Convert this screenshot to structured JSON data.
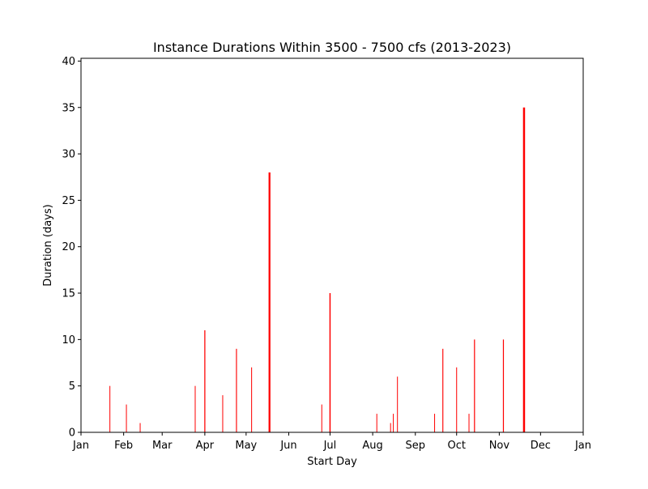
{
  "chart_data": {
    "type": "bar",
    "title": "Instance Durations Within 3500 - 7500 cfs (2013-2023)",
    "xlabel": "Start Day",
    "ylabel": "Duration (days)",
    "xlim": [
      "Jan 1",
      "Jan 1 (next year)"
    ],
    "ylim": [
      0,
      40.3
    ],
    "x_ticks": [
      "Jan",
      "Feb",
      "Mar",
      "Apr",
      "May",
      "Jun",
      "Jul",
      "Aug",
      "Sep",
      "Oct",
      "Nov",
      "Dec",
      "Jan"
    ],
    "y_ticks": [
      0,
      5,
      10,
      15,
      20,
      25,
      30,
      35,
      40
    ],
    "grid": false,
    "bar_color": "#ff0000",
    "series": [
      {
        "values": [
          {
            "start": "Jan 22",
            "duration": 5
          },
          {
            "start": "Feb 3",
            "duration": 3
          },
          {
            "start": "Feb 13",
            "duration": 1
          },
          {
            "start": "Mar 25",
            "duration": 5
          },
          {
            "start": "Apr 1",
            "duration": 11
          },
          {
            "start": "Apr 14",
            "duration": 4
          },
          {
            "start": "Apr 24",
            "duration": 9
          },
          {
            "start": "May 5",
            "duration": 7
          },
          {
            "start": "May 18",
            "duration": 28
          },
          {
            "start": "Jun 25",
            "duration": 3
          },
          {
            "start": "Jul 1",
            "duration": 15
          },
          {
            "start": "Aug 4",
            "duration": 2
          },
          {
            "start": "Aug 14",
            "duration": 1
          },
          {
            "start": "Aug 16",
            "duration": 2
          },
          {
            "start": "Aug 19",
            "duration": 6
          },
          {
            "start": "Sep 15",
            "duration": 2
          },
          {
            "start": "Sep 21",
            "duration": 9
          },
          {
            "start": "Oct 1",
            "duration": 7
          },
          {
            "start": "Oct 10",
            "duration": 2
          },
          {
            "start": "Oct 14",
            "duration": 10
          },
          {
            "start": "Nov 4",
            "duration": 10
          },
          {
            "start": "Nov 19",
            "duration": 35
          }
        ]
      }
    ]
  }
}
